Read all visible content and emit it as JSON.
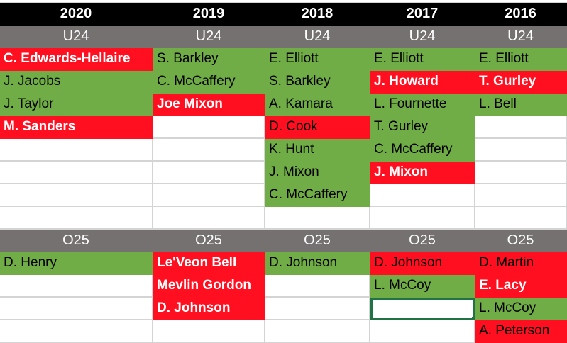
{
  "colors": {
    "good": "#70ad47",
    "bad": "#ff0f1f",
    "header": "#000000",
    "group": "#757171",
    "selection": "#217346"
  },
  "columns": [
    {
      "year": "2020",
      "u24_label": "U24",
      "o25_label": "O25",
      "u24": [
        {
          "name": "C. Edwards-Hellaire",
          "status": "bad",
          "highlight": true
        },
        {
          "name": "J. Jacobs",
          "status": "good"
        },
        {
          "name": "J. Taylor",
          "status": "good"
        },
        {
          "name": "M. Sanders",
          "status": "bad",
          "highlight": true
        }
      ],
      "o25": [
        {
          "name": "D. Henry",
          "status": "good"
        }
      ]
    },
    {
      "year": "2019",
      "u24_label": "U24",
      "o25_label": "O25",
      "u24": [
        {
          "name": "S. Barkley",
          "status": "good"
        },
        {
          "name": "C. McCaffery",
          "status": "good"
        },
        {
          "name": "Joe Mixon",
          "status": "bad",
          "highlight": true
        }
      ],
      "o25": [
        {
          "name": "Le'Veon Bell",
          "status": "bad",
          "highlight": true
        },
        {
          "name": "Mevlin Gordon",
          "status": "bad",
          "highlight": true
        },
        {
          "name": "D. Johnson",
          "status": "bad",
          "highlight": true
        }
      ]
    },
    {
      "year": "2018",
      "u24_label": "U24",
      "o25_label": "O25",
      "u24": [
        {
          "name": "E. Elliott",
          "status": "good"
        },
        {
          "name": "S. Barkley",
          "status": "good"
        },
        {
          "name": "A. Kamara",
          "status": "good"
        },
        {
          "name": "D. Cook",
          "status": "bad"
        },
        {
          "name": "K. Hunt",
          "status": "good"
        },
        {
          "name": "J. Mixon",
          "status": "good"
        },
        {
          "name": "C. McCaffery",
          "status": "good"
        }
      ],
      "o25": [
        {
          "name": "D. Johnson",
          "status": "good"
        }
      ]
    },
    {
      "year": "2017",
      "u24_label": "U24",
      "o25_label": "O25",
      "u24": [
        {
          "name": "E. Elliott",
          "status": "good"
        },
        {
          "name": "J. Howard",
          "status": "bad",
          "highlight": true
        },
        {
          "name": "L. Fournette",
          "status": "good"
        },
        {
          "name": "T. Gurley",
          "status": "good"
        },
        {
          "name": "C. McCaffery",
          "status": "good"
        },
        {
          "name": "J. Mixon",
          "status": "bad",
          "highlight": true
        }
      ],
      "o25": [
        {
          "name": "D. Johnson",
          "status": "bad"
        },
        {
          "name": "L. McCoy",
          "status": "good"
        }
      ]
    },
    {
      "year": "2016",
      "u24_label": "U24",
      "o25_label": "O25",
      "u24": [
        {
          "name": "E. Elliott",
          "status": "good"
        },
        {
          "name": "T. Gurley",
          "status": "bad",
          "highlight": true
        },
        {
          "name": "L. Bell",
          "status": "good"
        }
      ],
      "o25": [
        {
          "name": "D. Martin",
          "status": "bad"
        },
        {
          "name": "E. Lacy",
          "status": "bad",
          "highlight": true
        },
        {
          "name": "L. McCoy",
          "status": "good"
        },
        {
          "name": "A. Peterson",
          "status": "bad"
        }
      ]
    }
  ],
  "selected_cell": {
    "column": 3,
    "o25_row": 2
  }
}
